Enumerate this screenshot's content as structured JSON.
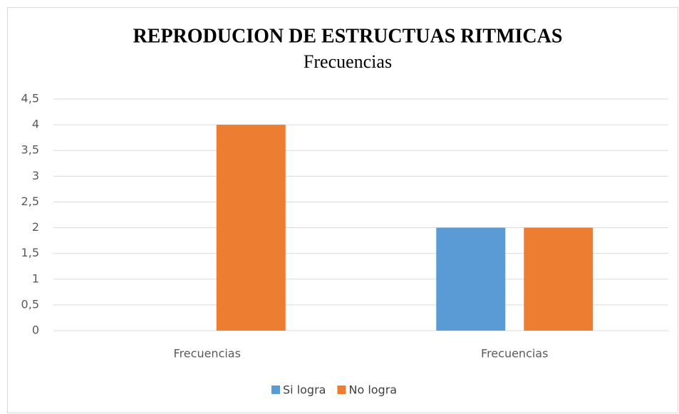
{
  "chart_data": {
    "type": "bar",
    "title": "REPRODUCION DE ESTRUCTUAS RITMICAS",
    "subtitle": "Frecuencias",
    "categories": [
      "Frecuencias",
      "Frecuencias"
    ],
    "series": [
      {
        "name": "Si logra",
        "color": "#5b9bd5",
        "values": [
          0,
          2
        ]
      },
      {
        "name": "No logra",
        "color": "#ed7d31",
        "values": [
          4,
          2
        ]
      }
    ],
    "ylim": [
      0,
      4.5
    ],
    "yticks": [
      0,
      {
        "value": 0.5,
        "label": "0,5"
      },
      1,
      {
        "value": 1.5,
        "label": "1,5"
      },
      2,
      {
        "value": 2.5,
        "label": "2,5"
      },
      3,
      {
        "value": 3.5,
        "label": "3,5"
      },
      4,
      {
        "value": 4.5,
        "label": "4,5"
      }
    ],
    "grid": true,
    "legend": "bottom"
  }
}
